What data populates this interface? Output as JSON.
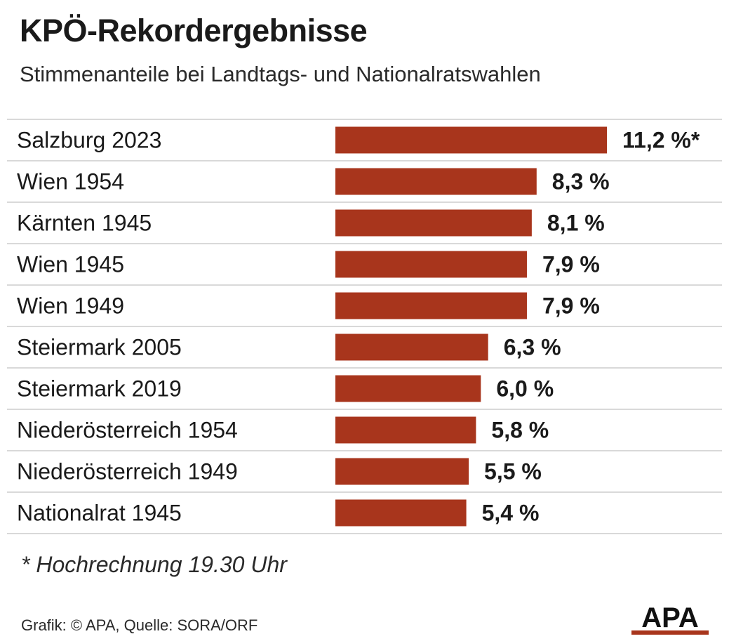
{
  "title": "KPÖ-Rekordergebnisse",
  "subtitle": "Stimmenanteile bei Landtags- und Nationalratswahlen",
  "footnote": "* Hochrechnung 19.30 Uhr",
  "credit": "Grafik: © APA, Quelle: SORA/ORF",
  "logo_text": "APA",
  "colors": {
    "bar": "#a8351c",
    "grid": "#d9d9d9",
    "text": "#1a1a1a"
  },
  "chart_data": {
    "type": "bar",
    "orientation": "horizontal",
    "title": "KPÖ-Rekordergebnisse",
    "subtitle": "Stimmenanteile bei Landtags- und Nationalratswahlen",
    "categories": [
      "Salzburg 2023",
      "Wien 1954",
      "Kärnten 1945",
      "Wien 1945",
      "Wien 1949",
      "Steiermark 2005",
      "Steiermark 2019",
      "Niederösterreich 1954",
      "Niederösterreich 1949",
      "Nationalrat 1945"
    ],
    "values": [
      11.2,
      8.3,
      8.1,
      7.9,
      7.9,
      6.3,
      6.0,
      5.8,
      5.5,
      5.4
    ],
    "value_labels": [
      "11,2 %*",
      "8,3 %",
      "8,1 %",
      "7,9 %",
      "7,9 %",
      "6,3 %",
      "6,0 %",
      "5,8 %",
      "5,5 %",
      "5,4 %"
    ],
    "xlim": [
      0,
      11.2
    ],
    "grid": true
  }
}
